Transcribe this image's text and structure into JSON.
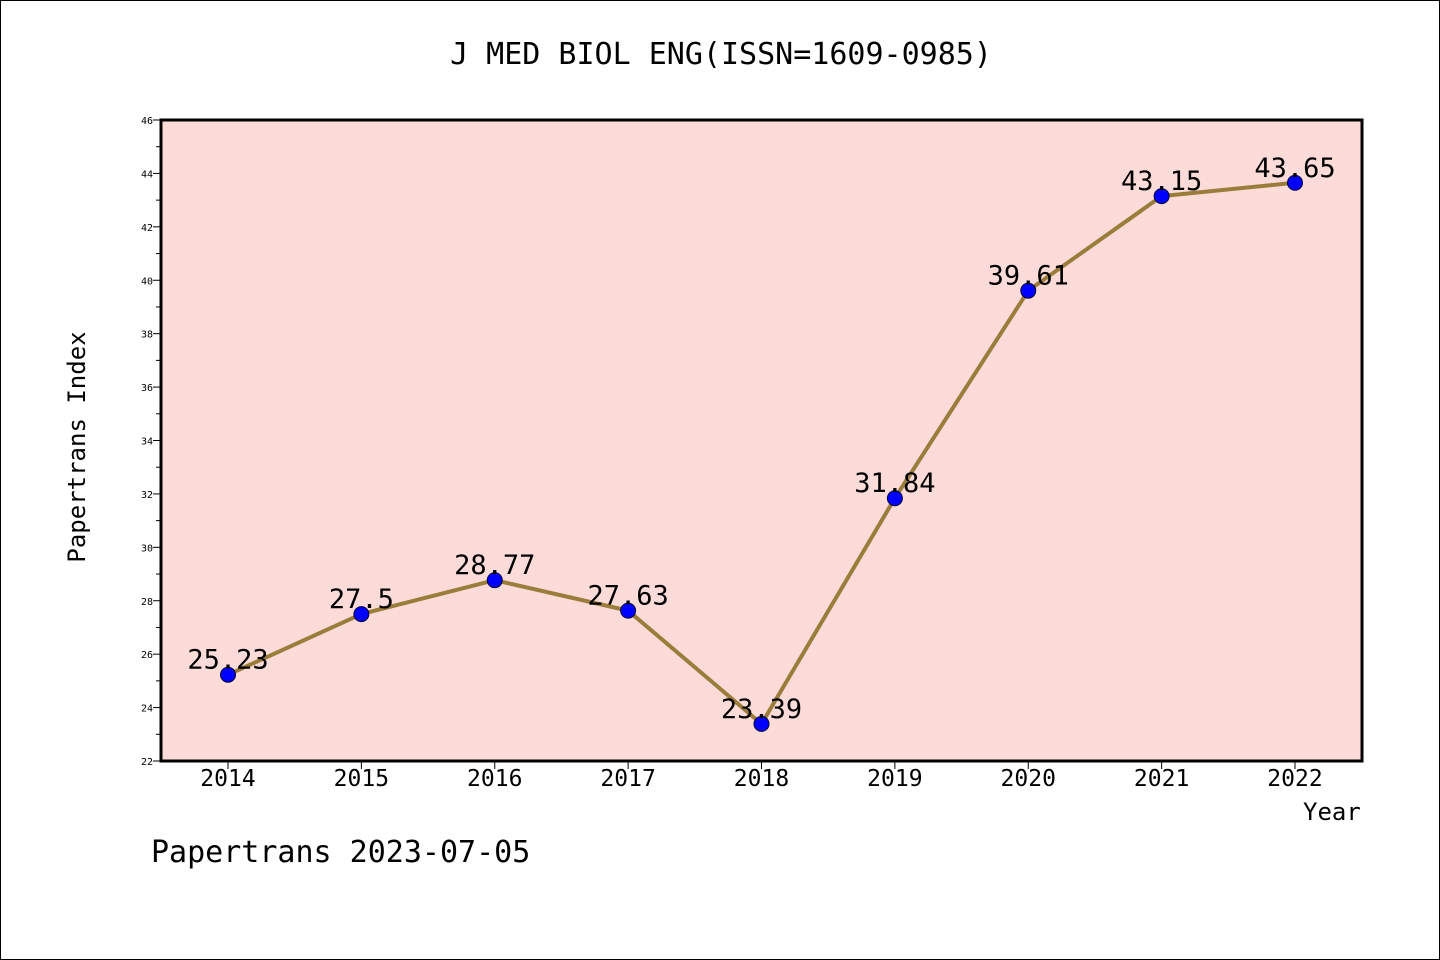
{
  "chart_data": {
    "type": "line",
    "title": "J MED BIOL ENG(ISSN=1609-0985)",
    "xlabel": "Year",
    "ylabel": "Papertrans Index",
    "categories": [
      "2014",
      "2015",
      "2016",
      "2017",
      "2018",
      "2019",
      "2020",
      "2021",
      "2022"
    ],
    "series": [
      {
        "values": [
          25.23,
          27.5,
          28.77,
          27.63,
          23.39,
          31.84,
          39.61,
          43.15,
          43.65
        ],
        "labels": [
          "25.23",
          "27.5",
          "28.77",
          "27.63",
          "23.39",
          "31.84",
          "39.61",
          "43.15",
          "43.65"
        ]
      }
    ],
    "ylim": [
      22,
      46
    ],
    "yticks": [
      "22",
      "24",
      "26",
      "28",
      "30",
      "32",
      "34",
      "36",
      "38",
      "40",
      "42",
      "44",
      "46"
    ],
    "grid": false,
    "colors": {
      "plot_background": "#fddbd9",
      "line": "#9a7d3a",
      "marker": "#0000ff",
      "axis": "#000000"
    }
  },
  "footer": "Papertrans 2023-07-05"
}
